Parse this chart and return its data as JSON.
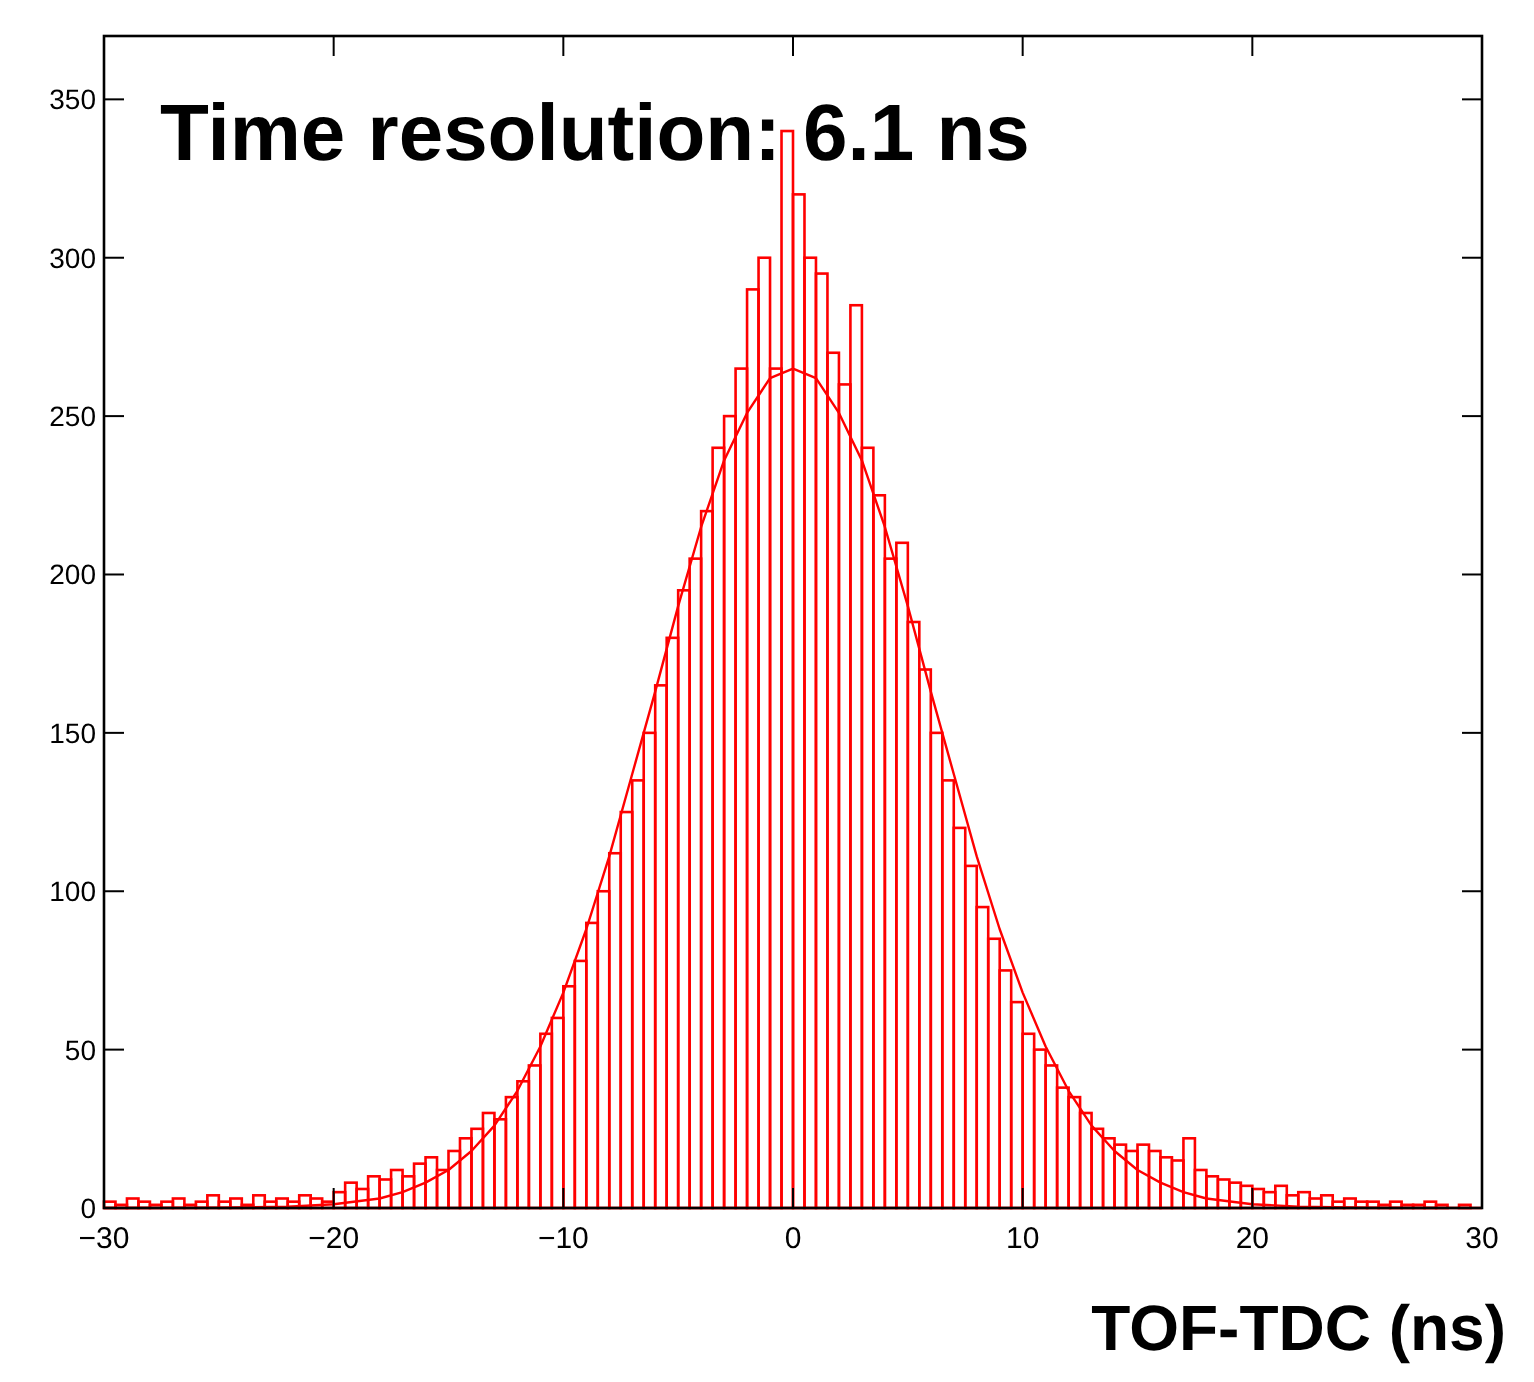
{
  "chart_data": {
    "type": "histogram",
    "xlabel": "TOF-TDC (ns)",
    "annotations": [
      "Time resolution: 6.1 ns"
    ],
    "bins": [
      -30,
      -29.5,
      -29,
      -28.5,
      -28,
      -27.5,
      -27,
      -26.5,
      -26,
      -25.5,
      -25,
      -24.5,
      -24,
      -23.5,
      -23,
      -22.5,
      -22,
      -21.5,
      -21,
      -20.5,
      -20,
      -19.5,
      -19,
      -18.5,
      -18,
      -17.5,
      -17,
      -16.5,
      -16,
      -15.5,
      -15,
      -14.5,
      -14,
      -13.5,
      -13,
      -12.5,
      -12,
      -11.5,
      -11,
      -10.5,
      -10,
      -9.5,
      -9,
      -8.5,
      -8,
      -7.5,
      -7,
      -6.5,
      -6,
      -5.5,
      -5,
      -4.5,
      -4,
      -3.5,
      -3,
      -2.5,
      -2,
      -1.5,
      -1,
      -0.5,
      0,
      0.5,
      1,
      1.5,
      2,
      2.5,
      3,
      3.5,
      4,
      4.5,
      5,
      5.5,
      6,
      6.5,
      7,
      7.5,
      8,
      8.5,
      9,
      9.5,
      10,
      10.5,
      11,
      11.5,
      12,
      12.5,
      13,
      13.5,
      14,
      14.5,
      15,
      15.5,
      16,
      16.5,
      17,
      17.5,
      18,
      18.5,
      19,
      19.5,
      20,
      20.5,
      21,
      21.5,
      22,
      22.5,
      23,
      23.5,
      24,
      24.5,
      25,
      25.5,
      26,
      26.5,
      27,
      27.5,
      28,
      28.5,
      29,
      29.5,
      30
    ],
    "values": [
      2,
      1,
      3,
      2,
      1,
      2,
      3,
      1,
      2,
      4,
      2,
      3,
      1,
      4,
      2,
      3,
      2,
      4,
      3,
      2,
      5,
      8,
      6,
      10,
      9,
      12,
      10,
      14,
      16,
      12,
      18,
      22,
      25,
      30,
      28,
      35,
      40,
      45,
      55,
      60,
      70,
      78,
      90,
      100,
      112,
      125,
      135,
      150,
      165,
      180,
      195,
      205,
      220,
      240,
      250,
      265,
      290,
      300,
      265,
      340,
      320,
      300,
      295,
      270,
      260,
      285,
      240,
      225,
      205,
      210,
      185,
      170,
      150,
      135,
      120,
      108,
      95,
      85,
      75,
      65,
      55,
      50,
      45,
      38,
      35,
      30,
      25,
      22,
      20,
      18,
      20,
      18,
      16,
      15,
      22,
      12,
      10,
      9,
      8,
      7,
      6,
      5,
      7,
      4,
      5,
      3,
      4,
      2,
      3,
      2,
      2,
      1,
      2,
      1,
      1,
      2,
      1,
      0,
      1,
      0
    ],
    "color": "#ff0000",
    "series": [
      {
        "type": "line",
        "color": "#ff0000",
        "x": [
          -30,
          -25,
          -22,
          -20,
          -18,
          -17,
          -16,
          -15,
          -14,
          -13,
          -12,
          -11,
          -10,
          -9,
          -8,
          -7,
          -6,
          -5,
          -4,
          -3,
          -2,
          -1,
          0,
          1,
          2,
          3,
          4,
          5,
          6,
          7,
          8,
          9,
          10,
          11,
          12,
          13,
          14,
          15,
          16,
          17,
          18,
          20,
          22,
          25,
          30
        ],
        "values": [
          0,
          0.1,
          0.4,
          1.2,
          3,
          5,
          8,
          12,
          18,
          26,
          37,
          51,
          68,
          88,
          111,
          137,
          163,
          190,
          215,
          236,
          251,
          262,
          265,
          262,
          251,
          236,
          215,
          190,
          163,
          137,
          111,
          88,
          68,
          51,
          37,
          26,
          18,
          12,
          8,
          5,
          3,
          1.2,
          0.4,
          0.1,
          0
        ]
      }
    ],
    "xlim": [
      -30,
      30
    ],
    "xticks": [
      -30,
      -20,
      -10,
      0,
      10,
      20,
      30
    ],
    "ylim": [
      0,
      370
    ],
    "yticks": [
      0,
      50,
      100,
      150,
      200,
      250,
      300,
      350
    ],
    "grid": false
  }
}
